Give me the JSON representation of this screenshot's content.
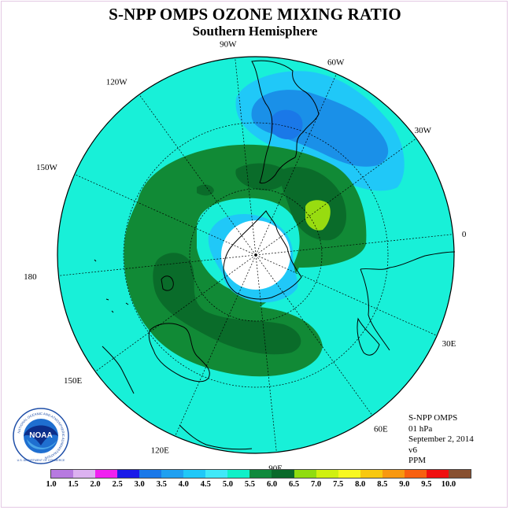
{
  "title": "S-NPP OMPS OZONE MIXING RATIO",
  "subtitle": "Southern Hemisphere",
  "longitude_labels": [
    "90W",
    "60W",
    "30W",
    "0",
    "30E",
    "60E",
    "90E",
    "120E",
    "150E",
    "180",
    "150W",
    "120W"
  ],
  "info": {
    "instrument": "S-NPP OMPS",
    "level": "01 hPa",
    "date": "September 2, 2014",
    "version": "v6",
    "units": "PPM"
  },
  "logo": {
    "text": "NOAA",
    "ring_text": "NATIONAL OCEANIC AND ATMOSPHERIC ADMINISTRATION",
    "bottom_text": "U.S. DEPARTMENT OF COMMERCE",
    "icon": "noaa-logo"
  },
  "legend": {
    "ticks": [
      "1.0",
      "1.5",
      "2.0",
      "2.5",
      "3.0",
      "3.5",
      "4.0",
      "4.5",
      "5.0",
      "5.5",
      "6.0",
      "6.5",
      "7.0",
      "7.5",
      "8.0",
      "8.5",
      "9.0",
      "9.5",
      "10.0"
    ],
    "colors": [
      "#b77ae0",
      "#dcb2f0",
      "#f020f0",
      "#1a1ae8",
      "#1a78e8",
      "#20a0f0",
      "#20c8f8",
      "#40e8f8",
      "#10f0c8",
      "#108a3c",
      "#0a6a2a",
      "#90dc10",
      "#d0f010",
      "#f8f820",
      "#f8c810",
      "#f89810",
      "#f86010",
      "#f01010",
      "#885030"
    ]
  },
  "colors": {
    "background_field": "#18f0d8",
    "ring_dark_green": "#118a36",
    "ring_darker_green": "#0a6c2a",
    "light_blue": "#20c8f8",
    "blue": "#1a90e8",
    "deep_blue": "#1a78e8",
    "lime": "#98dc10",
    "coast": "#000000",
    "polar_hole": "#ffffff"
  }
}
